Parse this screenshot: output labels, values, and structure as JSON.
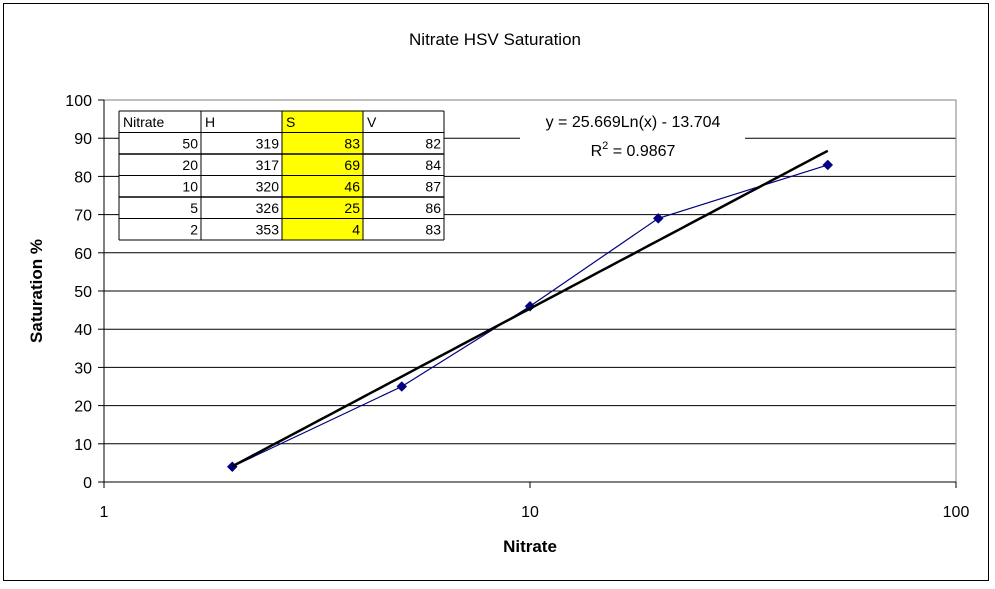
{
  "chart_data": {
    "type": "scatter",
    "title": "Nitrate HSV Saturation",
    "xlabel": "Nitrate",
    "ylabel": "Saturation %",
    "x_scale": "log",
    "xlim": [
      1,
      100
    ],
    "ylim": [
      0,
      100
    ],
    "x_ticks": [
      "1",
      "10",
      "100"
    ],
    "y_ticks": [
      "0",
      "10",
      "20",
      "30",
      "40",
      "50",
      "60",
      "70",
      "80",
      "90",
      "100"
    ],
    "grid": "horizontal",
    "series": [
      {
        "x": [
          2,
          5,
          10,
          20,
          50
        ],
        "y": [
          4,
          25,
          46,
          69,
          83
        ],
        "color": "#000080",
        "marker": "diamond"
      }
    ],
    "trendline": {
      "type": "logarithmic",
      "a": 25.669,
      "b": -13.704,
      "x_range": [
        2,
        50
      ],
      "color": "#000000",
      "equation": "y = 25.669Ln(x) - 13.704",
      "r2_prefix": "R",
      "r2_exp": "2",
      "r2_value": " = 0.9867"
    },
    "table": {
      "headers": [
        "Nitrate",
        "H",
        "S",
        "V"
      ],
      "rows": [
        [
          "50",
          "319",
          "83",
          "82"
        ],
        [
          "20",
          "317",
          "69",
          "84"
        ],
        [
          "10",
          "320",
          "46",
          "87"
        ],
        [
          "5",
          "326",
          "25",
          "86"
        ],
        [
          "2",
          "353",
          "4",
          "83"
        ]
      ],
      "highlight_column": 2,
      "highlight_color": "#ffff00"
    }
  }
}
